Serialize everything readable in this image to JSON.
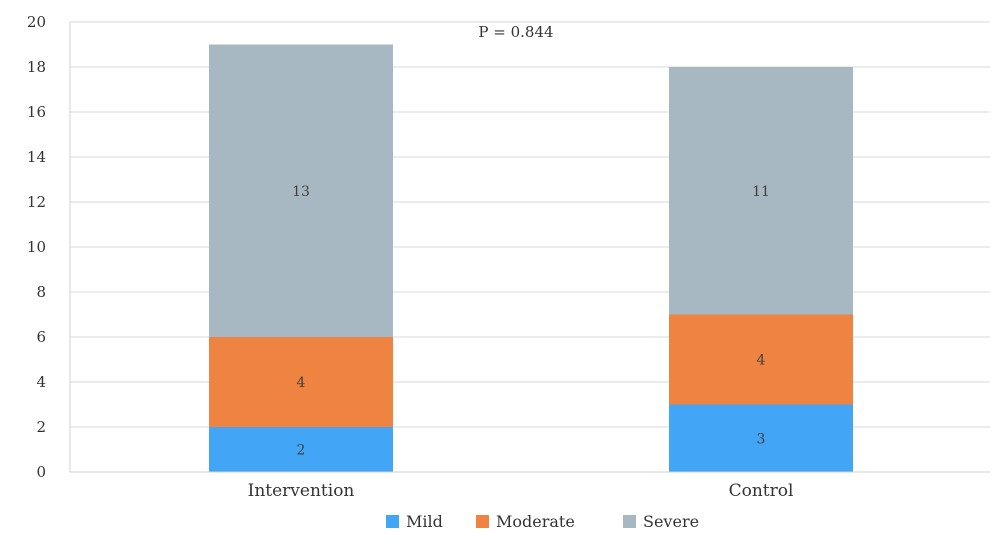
{
  "chart_data": {
    "type": "bar",
    "stacked": true,
    "categories": [
      "Intervention",
      "Control"
    ],
    "series": [
      {
        "name": "Mild",
        "values": [
          2,
          3
        ],
        "color": "#42a5f5"
      },
      {
        "name": "Moderate",
        "values": [
          4,
          4
        ],
        "color": "#ef8341"
      },
      {
        "name": "Severe",
        "values": [
          13,
          11
        ],
        "color": "#a8b8c2"
      }
    ],
    "ylim": [
      0,
      20
    ],
    "yticks": [
      0,
      2,
      4,
      6,
      8,
      10,
      12,
      14,
      16,
      18,
      20
    ],
    "annotation": "P = 0.844",
    "grid": true,
    "legend_position": "bottom"
  }
}
